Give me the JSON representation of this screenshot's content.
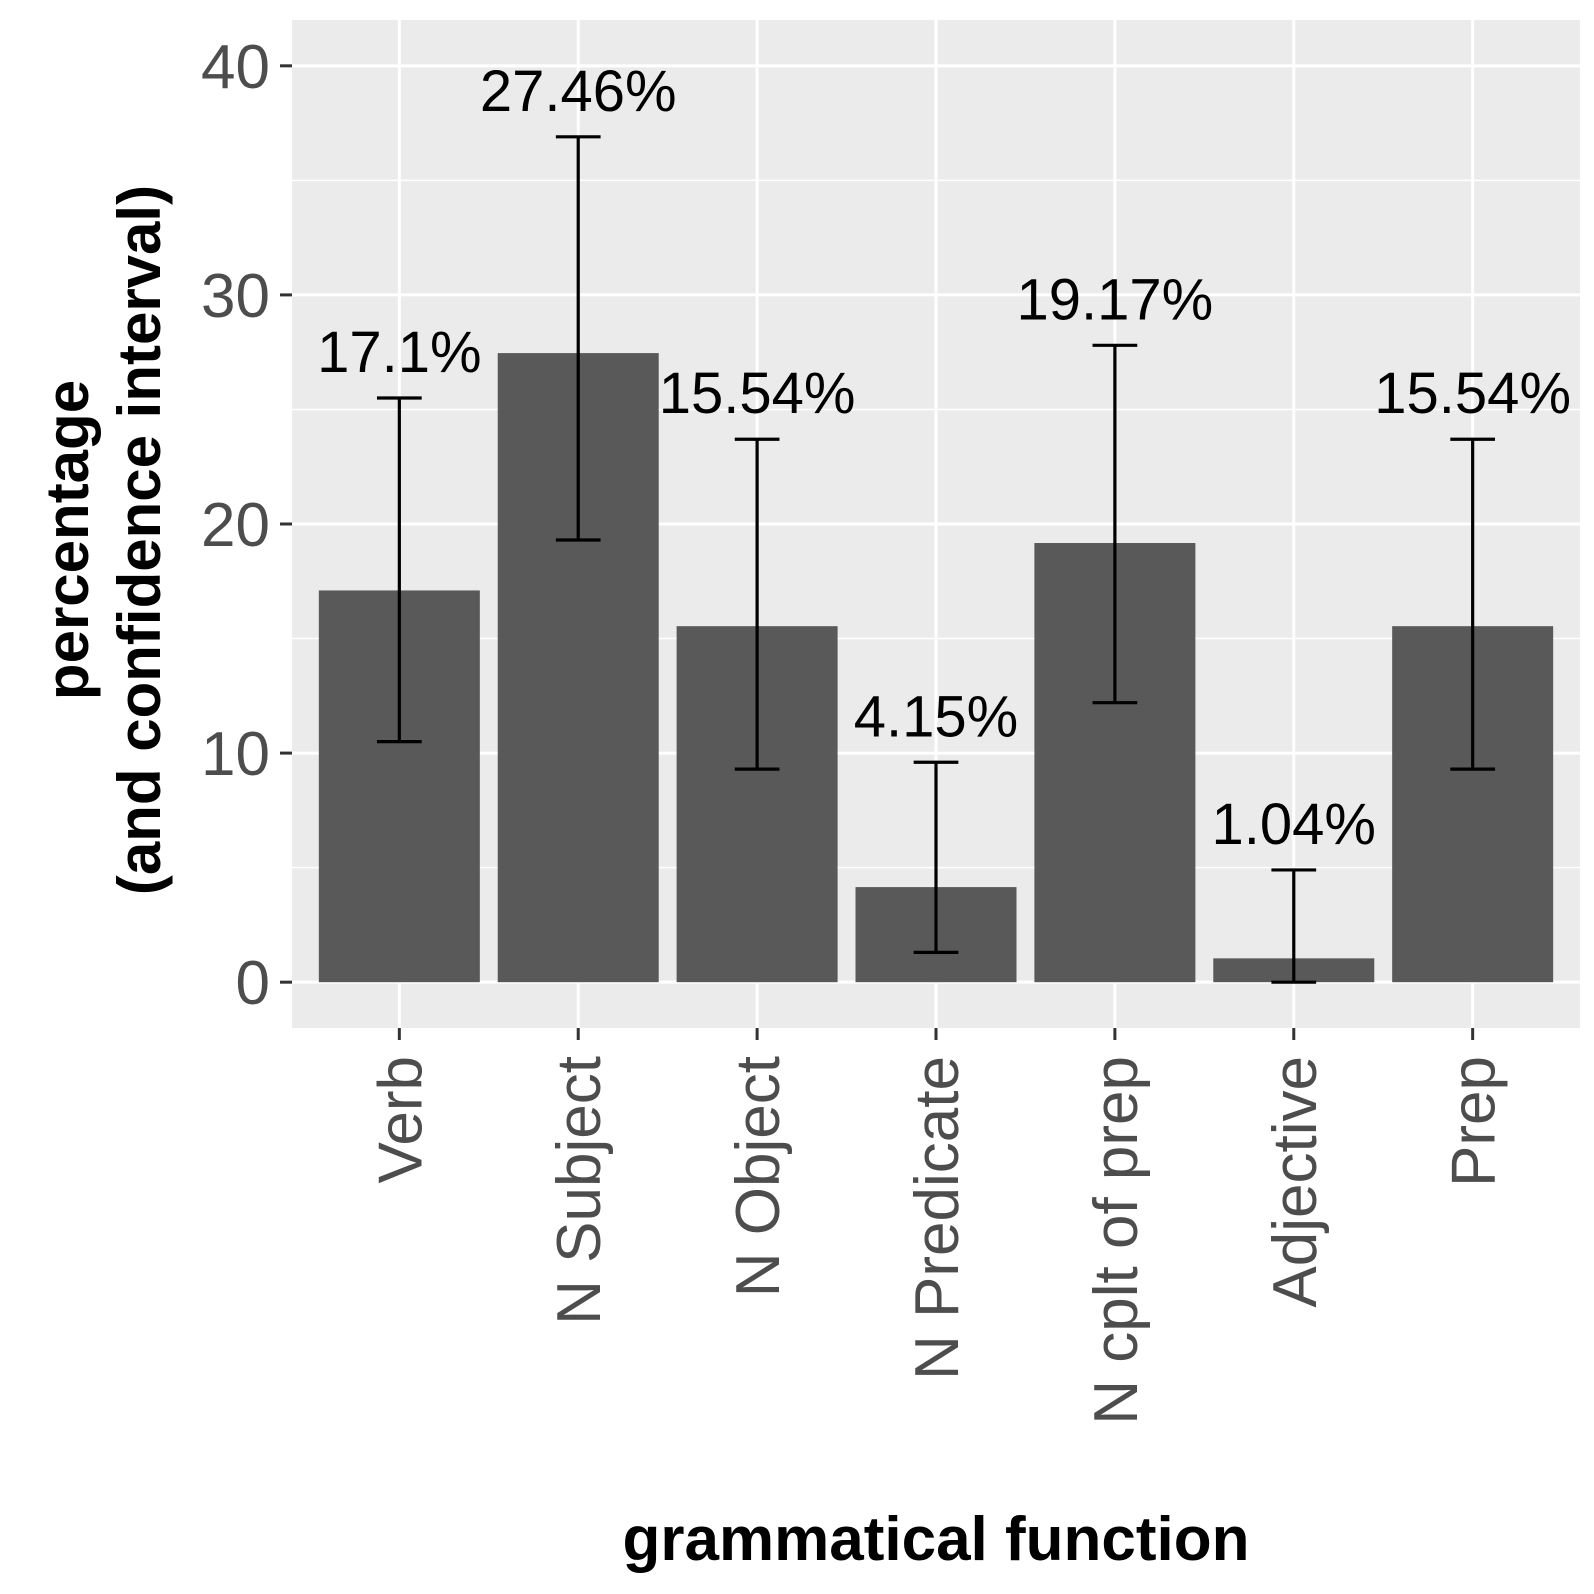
{
  "chart_data": {
    "type": "bar",
    "xlabel": "grammatical function",
    "ylabel_lines": [
      "percentage",
      "(and confidence interval)"
    ],
    "categories": [
      "Verb",
      "N Subject",
      "N Object",
      "N Predicate",
      "N cplt of prep",
      "Adjective",
      "Prep"
    ],
    "values": [
      17.1,
      27.46,
      15.54,
      4.15,
      19.17,
      1.04,
      15.54
    ],
    "ci_low": [
      10.5,
      19.3,
      9.3,
      1.3,
      12.2,
      0.0,
      9.3
    ],
    "ci_high": [
      25.5,
      36.9,
      23.7,
      9.6,
      27.8,
      4.9,
      23.7
    ],
    "data_labels": [
      "17.1%",
      "27.46%",
      "15.54%",
      "4.15%",
      "19.17%",
      "1.04%",
      "15.54%"
    ],
    "ylim": [
      -2,
      42
    ],
    "yticks": [
      0,
      10,
      20,
      30,
      40
    ],
    "grid": true,
    "colors": {
      "bar": "#595959",
      "panel": "#ebebeb",
      "grid": "#ffffff",
      "errorbar": "#000000"
    }
  }
}
